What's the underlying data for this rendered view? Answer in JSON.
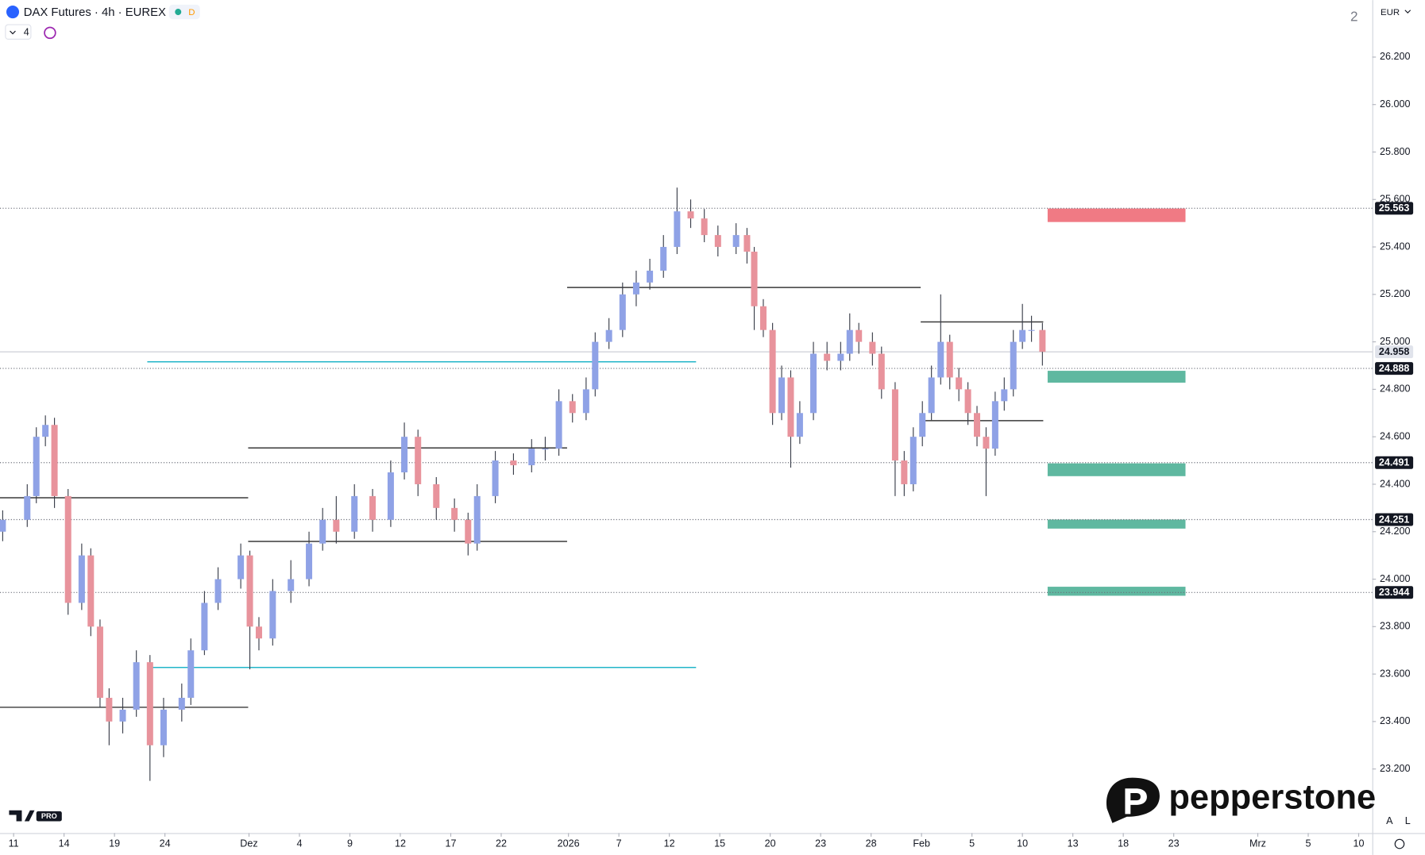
{
  "header": {
    "symbol": "DAX Futures · 4h · EUREX",
    "badge": "D",
    "indicator_count": "4",
    "layout_number": "2",
    "currency": "EUR",
    "auto_button": "A",
    "log_button": "L",
    "brand": "pepperstone",
    "tv_badge": "PRO"
  },
  "chart_data": {
    "type": "candlestick",
    "x": [
      -0.65,
      0.81,
      1.35,
      1.89,
      2.43,
      3.24,
      4.05,
      4.59,
      5.14,
      5.68,
      6.49,
      7.3,
      8.11,
      8.92,
      10,
      10.54,
      11.35,
      12.16,
      13.51,
      14.05,
      14.59,
      15.41,
      16.49,
      17.57,
      18.38,
      19.19,
      20.27,
      21.35,
      22.43,
      23.24,
      24.05,
      25.14,
      26.22,
      27.03,
      27.57,
      28.65,
      29.73,
      30.81,
      31.62,
      32.43,
      33.24,
      34.05,
      34.59,
      35.41,
      36.22,
      37.03,
      37.84,
      38.65,
      39.46,
      40.27,
      41.08,
      41.89,
      42.97,
      43.62,
      44.05,
      44.59,
      45.14,
      45.68,
      46.22,
      46.76,
      47.57,
      48.38,
      49.19,
      49.73,
      50.27,
      51.08,
      51.62,
      52.43,
      52.97,
      53.51,
      54.05,
      54.59,
      55.14,
      55.68,
      56.22,
      56.76,
      57.3,
      57.84,
      58.38,
      58.92,
      59.46,
      60,
      60.54,
      61.19
    ],
    "open": [
      24200,
      24250,
      24350,
      24600,
      24650,
      24350,
      23900,
      24100,
      23800,
      23500,
      23400,
      23450,
      23650,
      23300,
      23450,
      23500,
      23700,
      23900,
      24000,
      24100,
      23800,
      23750,
      23950,
      24000,
      24150,
      24250,
      24200,
      24350,
      24250,
      24450,
      24600,
      24400,
      24300,
      24250,
      24150,
      24350,
      24500,
      24480,
      24550,
      24550,
      24750,
      24700,
      24800,
      25000,
      25050,
      25200,
      25250,
      25300,
      25400,
      25550,
      25520,
      25450,
      25400,
      25450,
      25380,
      25150,
      25050,
      24700,
      24850,
      24600,
      24700,
      24950,
      24920,
      24950,
      25050,
      25000,
      24950,
      24800,
      24500,
      24400,
      24600,
      24700,
      24850,
      25000,
      24850,
      24800,
      24700,
      24600,
      24550,
      24750,
      24800,
      25000,
      25050,
      25050
    ],
    "high": [
      24290,
      24400,
      24640,
      24690,
      24680,
      24380,
      24150,
      24130,
      23830,
      23540,
      23500,
      23700,
      23680,
      23500,
      23560,
      23750,
      23950,
      24050,
      24150,
      24120,
      23840,
      24000,
      24080,
      24200,
      24300,
      24350,
      24400,
      24380,
      24500,
      24660,
      24630,
      24430,
      24340,
      24280,
      24400,
      24540,
      24530,
      24590,
      24600,
      24800,
      24780,
      24850,
      25040,
      25100,
      25250,
      25300,
      25350,
      25450,
      25650,
      25600,
      25560,
      25490,
      25500,
      25480,
      25400,
      25180,
      25080,
      24900,
      24880,
      24750,
      25000,
      25000,
      25000,
      25120,
      25080,
      25040,
      24980,
      24830,
      24540,
      24640,
      24750,
      24900,
      25200,
      25030,
      24890,
      24830,
      24730,
      24640,
      24790,
      24850,
      25050,
      25160,
      25110,
      25080
    ],
    "low": [
      24160,
      24220,
      24320,
      24560,
      24300,
      23850,
      23870,
      23760,
      23460,
      23300,
      23350,
      23420,
      23150,
      23250,
      23400,
      23470,
      23680,
      23870,
      23960,
      23620,
      23700,
      23720,
      23900,
      23970,
      24120,
      24150,
      24170,
      24200,
      24220,
      24420,
      24350,
      24250,
      24200,
      24100,
      24120,
      24320,
      24440,
      24450,
      24500,
      24520,
      24660,
      24670,
      24770,
      24970,
      25020,
      25150,
      25220,
      25270,
      25370,
      25480,
      25420,
      25360,
      25370,
      25330,
      25050,
      25020,
      24650,
      24670,
      24470,
      24570,
      24670,
      24880,
      24880,
      24920,
      24950,
      24900,
      24760,
      24350,
      24350,
      24370,
      24560,
      24670,
      24820,
      24800,
      24750,
      24650,
      24560,
      24350,
      24520,
      24710,
      24770,
      24970,
      25000,
      24900
    ],
    "close": [
      24250,
      24350,
      24600,
      24650,
      24350,
      23900,
      24100,
      23800,
      23500,
      23400,
      23450,
      23650,
      23300,
      23450,
      23500,
      23700,
      23900,
      24000,
      24100,
      23800,
      23750,
      23950,
      24000,
      24150,
      24250,
      24200,
      24350,
      24250,
      24450,
      24600,
      24400,
      24300,
      24250,
      24150,
      24350,
      24500,
      24480,
      24550,
      24550,
      24750,
      24700,
      24800,
      25000,
      25050,
      25200,
      25250,
      25300,
      25400,
      25550,
      25520,
      25450,
      25400,
      25450,
      25380,
      25150,
      25050,
      24700,
      24850,
      24600,
      24700,
      24950,
      24920,
      24950,
      25050,
      25000,
      24950,
      24800,
      24500,
      24400,
      24600,
      24700,
      24850,
      25000,
      24850,
      24800,
      24700,
      24600,
      24550,
      24750,
      24800,
      25000,
      25050,
      25050,
      24958
    ],
    "up_color": "#8fa2e6",
    "down_color": "#e8939c",
    "xlim": [
      -0.81,
      80.81
    ],
    "xticks": [
      {
        "value": 0,
        "label": "11"
      },
      {
        "value": 3,
        "label": "14"
      },
      {
        "value": 6,
        "label": "19"
      },
      {
        "value": 9,
        "label": "24"
      },
      {
        "value": 14,
        "label": "Dez"
      },
      {
        "value": 17,
        "label": "4"
      },
      {
        "value": 20,
        "label": "9"
      },
      {
        "value": 23,
        "label": "12"
      },
      {
        "value": 26,
        "label": "17"
      },
      {
        "value": 29,
        "label": "22"
      },
      {
        "value": 33,
        "label": "2026"
      },
      {
        "value": 36,
        "label": "7"
      },
      {
        "value": 39,
        "label": "12"
      },
      {
        "value": 42,
        "label": "15"
      },
      {
        "value": 45,
        "label": "20"
      },
      {
        "value": 48,
        "label": "23"
      },
      {
        "value": 51,
        "label": "28"
      },
      {
        "value": 54,
        "label": "Feb"
      },
      {
        "value": 57,
        "label": "5"
      },
      {
        "value": 60,
        "label": "10"
      },
      {
        "value": 63,
        "label": "13"
      },
      {
        "value": 66,
        "label": "18"
      },
      {
        "value": 69,
        "label": "23"
      },
      {
        "value": 74,
        "label": "Mrz"
      },
      {
        "value": 77,
        "label": "5"
      },
      {
        "value": 80,
        "label": "10"
      }
    ],
    "ylim": [
      22930,
      26440
    ],
    "yticks": [
      {
        "value": 23200,
        "label": "23.200"
      },
      {
        "value": 23400,
        "label": "23.400"
      },
      {
        "value": 23600,
        "label": "23.600"
      },
      {
        "value": 23800,
        "label": "23.800"
      },
      {
        "value": 24000,
        "label": "24.000"
      },
      {
        "value": 24200,
        "label": "24.200"
      },
      {
        "value": 24400,
        "label": "24.400"
      },
      {
        "value": 24600,
        "label": "24.600"
      },
      {
        "value": 24800,
        "label": "24.800"
      },
      {
        "value": 25000,
        "label": "25.000"
      },
      {
        "value": 25200,
        "label": "25.200"
      },
      {
        "value": 25400,
        "label": "25.400"
      },
      {
        "value": 25600,
        "label": "25.600"
      },
      {
        "value": 25800,
        "label": "25.800"
      },
      {
        "value": 26000,
        "label": "26.000"
      },
      {
        "value": 26200,
        "label": "26.200"
      }
    ],
    "price_levels": [
      {
        "value": 25563,
        "label": "25.563",
        "color": "#131722"
      },
      {
        "value": 24958,
        "label": "24.958",
        "color": "#e0e3eb"
      },
      {
        "value": 24888,
        "label": "24.888",
        "color": "#131722"
      },
      {
        "value": 24491,
        "label": "24.491",
        "color": "#131722"
      },
      {
        "value": 24251,
        "label": "24.251",
        "color": "#131722"
      },
      {
        "value": 23944,
        "label": "23.944",
        "color": "#131722"
      }
    ],
    "zones": [
      {
        "x": [
          61.5,
          69.7
        ],
        "low": 25505,
        "high": 25562,
        "color": "#f07a84"
      },
      {
        "x": [
          61.5,
          69.7
        ],
        "low": 24828,
        "high": 24878,
        "color": "#5fb8a0"
      },
      {
        "x": [
          61.5,
          69.7
        ],
        "low": 24434,
        "high": 24488,
        "color": "#5fb8a0"
      },
      {
        "x": [
          61.5,
          69.7
        ],
        "low": 24213,
        "high": 24251,
        "color": "#5fb8a0"
      },
      {
        "x": [
          61.5,
          69.7
        ],
        "low": 23930,
        "high": 23968,
        "color": "#5fb8a0"
      }
    ],
    "segments": [
      {
        "x": [
          32.92,
          53.95
        ],
        "value": 25229,
        "color": "#3a3a3a"
      },
      {
        "x": [
          13.95,
          32.92
        ],
        "value": 24553,
        "color": "#3a3a3a"
      },
      {
        "x": [
          -0.81,
          13.95
        ],
        "value": 24343,
        "color": "#3a3a3a"
      },
      {
        "x": [
          -0.81,
          13.95
        ],
        "value": 23460,
        "color": "#3a3a3a"
      },
      {
        "x": [
          13.95,
          32.92
        ],
        "value": 24159,
        "color": "#3a3a3a"
      },
      {
        "x": [
          53.95,
          61.24
        ],
        "value": 25084,
        "color": "#3a3a3a"
      },
      {
        "x": [
          53.95,
          61.24
        ],
        "value": 24668,
        "color": "#3a3a3a"
      },
      {
        "x": [
          7.95,
          40.59
        ],
        "value": 24916,
        "color": "#22b5c8"
      },
      {
        "x": [
          7.95,
          40.59
        ],
        "value": 23628,
        "color": "#22b5c8"
      }
    ]
  }
}
